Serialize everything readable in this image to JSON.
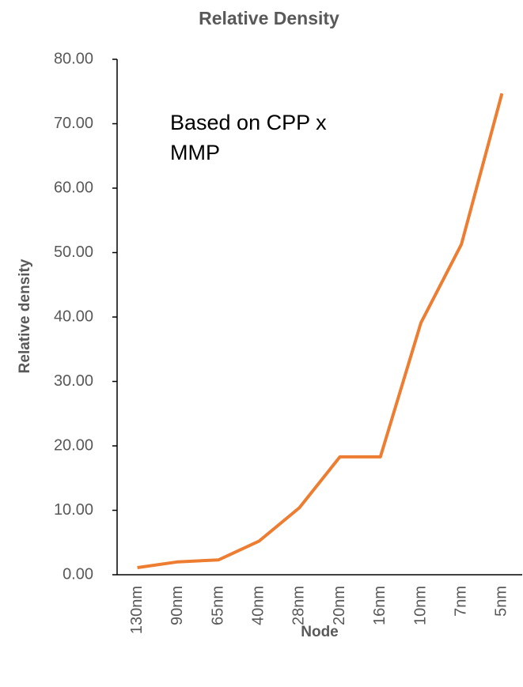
{
  "chart_data": {
    "type": "line",
    "title": "Relative Density",
    "annotation": "Based on CPP x MMP",
    "x_label": "Node",
    "y_label": "Relative density",
    "categories": [
      "130nm",
      "90nm",
      "65nm",
      "40nm",
      "28nm",
      "20nm",
      "16nm",
      "10nm",
      "7nm",
      "5nm"
    ],
    "series": [
      {
        "name": "Relative density",
        "color": "#ed7d31",
        "values": [
          1.1,
          2.0,
          2.3,
          5.2,
          10.4,
          18.3,
          18.3,
          39.1,
          51.3,
          74.7
        ]
      }
    ],
    "ylim": [
      0,
      80
    ],
    "yticks": [
      {
        "value": 0,
        "label": "0.00"
      },
      {
        "value": 10,
        "label": "10.00"
      },
      {
        "value": 20,
        "label": "20.00"
      },
      {
        "value": 30,
        "label": "30.00"
      },
      {
        "value": 40,
        "label": "40.00"
      },
      {
        "value": 50,
        "label": "50.00"
      },
      {
        "value": 60,
        "label": "60.00"
      },
      {
        "value": 70,
        "label": "70.00"
      },
      {
        "value": 80,
        "label": "80.00"
      }
    ],
    "grid": false
  }
}
